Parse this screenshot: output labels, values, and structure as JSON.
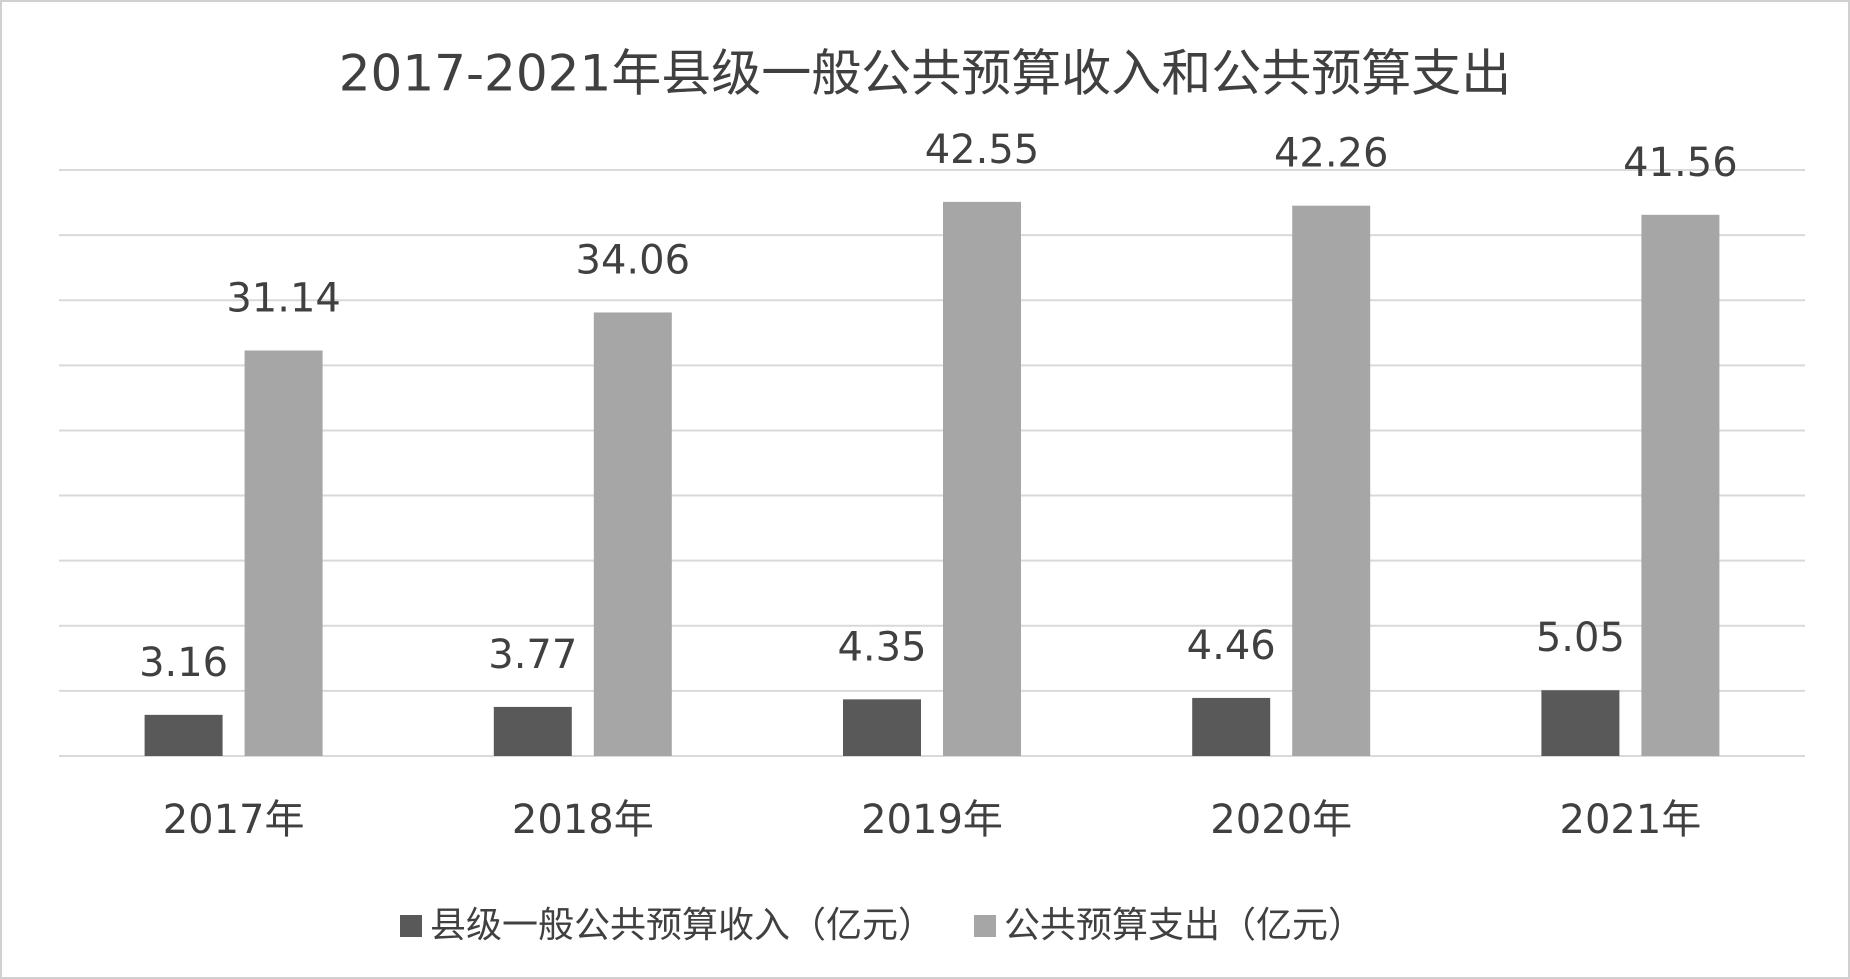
{
  "chart_data": {
    "type": "bar",
    "title": "2017-2021年县级一般公共预算收入和公共预算支出",
    "categories": [
      "2017年",
      "2018年",
      "2019年",
      "2020年",
      "2021年"
    ],
    "series": [
      {
        "name": "县级一般公共预算收入（亿元）",
        "color": "#595959",
        "values": [
          3.16,
          3.77,
          4.35,
          4.46,
          5.05
        ]
      },
      {
        "name": "公共预算支出（亿元）",
        "color": "#a6a6a6",
        "values": [
          31.14,
          34.06,
          42.55,
          42.26,
          41.56
        ]
      }
    ],
    "ylim": [
      0,
      45
    ],
    "yticks": [
      0,
      5,
      10,
      15,
      20,
      25,
      30,
      35,
      40,
      45
    ],
    "grid": true
  }
}
